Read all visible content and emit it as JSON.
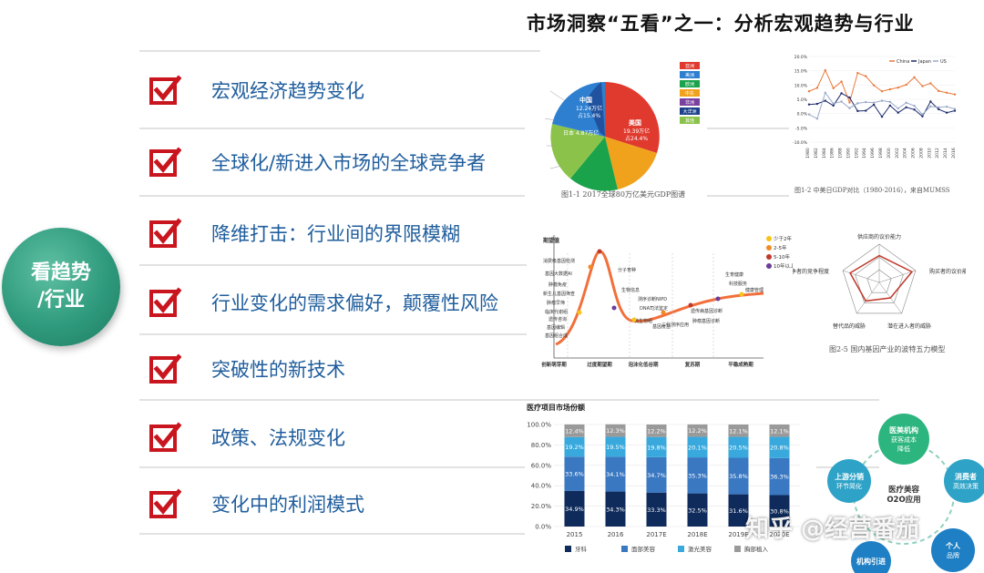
{
  "slide": {
    "title": "市场洞察“五看”之一：分析宏观趋势与行业",
    "badge": "看趋势\n/行业",
    "items": [
      "宏观经济趋势变化",
      "全球化/新进入市场的全球竞争者",
      "降维打击：行业间的界限模糊",
      "行业变化的需求偏好，颠覆性风险",
      "突破性的新技术",
      "政策、法规变化",
      "变化中的利润模式"
    ]
  },
  "colors": {
    "check": "#c9151e",
    "item_text": "#1f5d9c",
    "badge": "#2f9a7d"
  },
  "figures": {
    "pie": {
      "caption": "图1-1 2017全球80万亿美元GDP图谱",
      "china_label": "中国",
      "china_value": "12.24万亿",
      "china_share": "占15.4%",
      "us_label": "美国",
      "us_value": "19.39万亿",
      "us_share": "占24.4%",
      "japan_label": "日本 4.87万亿",
      "legend": [
        "亚洲",
        "美洲",
        "欧洲",
        "中东",
        "非洲",
        "大洋洲",
        "其他"
      ],
      "legend_colors": [
        "#e03a2f",
        "#2e7fd0",
        "#1aa34a",
        "#f0a21c",
        "#7b3fa0",
        "#1b3f8a",
        "#8bc34a"
      ]
    },
    "gdp": {
      "caption": "图1-2 中美日GDP对比（1980-2016），来自MUMSS",
      "legend": [
        "China",
        "Japan",
        "US"
      ],
      "yticks": [
        "20.0%",
        "15.0%",
        "10.0%",
        "5.0%",
        "0.0%",
        "-5.0%",
        "-10.0%"
      ]
    },
    "hype": {
      "ylabel": "期望值",
      "phases": [
        "创新萌芽期",
        "过度期望期",
        "泡沫化低谷期",
        "复苏期",
        "平稳成熟期"
      ],
      "legend": [
        "少于2年",
        "2-5年",
        "5-10年",
        "10年以上"
      ],
      "labels": [
        "消费级基因检测",
        "基因大数据AI",
        "肿瘤免疫",
        "新生儿基因筛查",
        "肿瘤早筛",
        "临床代谢组",
        "遗传咨询",
        "基因编辑",
        "基因组合成",
        "分子育种",
        "生物信息",
        "DNA司法鉴定",
        "测序诊断NIPD",
        "三代测序应用",
        "微生物组",
        "基因疫苗",
        "遗传病基因诊断",
        "肿瘤基因诊断",
        "生育健康",
        "科技服务",
        "健康管理"
      ]
    },
    "radar": {
      "caption": "图2-5 国内基因产业的波特五力模型",
      "labels": [
        "供应商的议价能力",
        "购买者的议价能力",
        "潜在进入者的威胁",
        "替代品的威胁",
        "同业竞争者的竞争程度"
      ]
    },
    "bar": {
      "title": "医疗项目市场份额",
      "legend": [
        "牙科",
        "面部美容",
        "激光美容",
        "胸部植入"
      ]
    },
    "o2o": {
      "center": "医疗美容\nO2O应用",
      "nodes": [
        "医美机构\n获客成本\n降低",
        "消费者\n高效决策",
        "个人\n品牌",
        "机构引进",
        "上游分销\n环节简化"
      ]
    },
    "watermark": "知乎 @经营番茄"
  },
  "chart_data": [
    {
      "type": "bar",
      "title": "医疗项目市场份额",
      "categories": [
        "2015",
        "2016",
        "2017E",
        "2018E",
        "2019E",
        "2020E"
      ],
      "series": [
        {
          "name": "牙科",
          "values": [
            34.9,
            34.3,
            33.3,
            32.5,
            31.6,
            30.8
          ]
        },
        {
          "name": "面部美容",
          "values": [
            33.6,
            34.1,
            34.7,
            35.3,
            35.8,
            36.3
          ]
        },
        {
          "name": "激光美容",
          "values": [
            19.2,
            19.5,
            19.8,
            20.1,
            20.5,
            20.8
          ]
        },
        {
          "name": "胸部植入",
          "values": [
            12.4,
            12.3,
            12.2,
            12.2,
            12.1,
            12.1
          ]
        }
      ],
      "yticks": [
        "0.0%",
        "20.0%",
        "40.0%",
        "60.0%",
        "80.0%",
        "100.0%"
      ],
      "ylim": [
        0,
        100
      ],
      "stacked": true,
      "colors": [
        "#0f2b5b",
        "#3a78c2",
        "#39a9dd",
        "#9a9a9a"
      ]
    },
    {
      "type": "line",
      "x": [
        "1980",
        "1982",
        "1984",
        "1986",
        "1988",
        "1990",
        "1992",
        "1994",
        "1996",
        "1998",
        "2000",
        "2002",
        "2004",
        "2006",
        "2008",
        "2010",
        "2012",
        "2014",
        "2016"
      ],
      "series": [
        {
          "name": "China",
          "values": [
            7.8,
            9.0,
            15.2,
            8.9,
            11.2,
            3.9,
            14.2,
            13.1,
            9.9,
            7.8,
            8.5,
            9.1,
            10.1,
            12.7,
            9.6,
            10.6,
            7.9,
            7.3,
            6.7
          ]
        },
        {
          "name": "Japan",
          "values": [
            3.2,
            3.4,
            4.5,
            2.8,
            7.1,
            5.6,
            0.9,
            1.0,
            3.1,
            -1.1,
            2.8,
            0.3,
            2.2,
            1.4,
            -1.0,
            4.2,
            1.5,
            0.3,
            1.0
          ]
        },
        {
          "name": "US",
          "values": [
            -0.3,
            -1.8,
            7.3,
            3.5,
            4.2,
            1.9,
            3.6,
            4.0,
            3.8,
            4.5,
            4.1,
            1.8,
            3.8,
            2.7,
            -0.3,
            2.5,
            2.2,
            2.4,
            1.6
          ]
        }
      ],
      "ylim": [
        -10,
        20
      ],
      "colors": [
        "#e8793a",
        "#1b2a6b",
        "#9aa8c8"
      ]
    }
  ]
}
